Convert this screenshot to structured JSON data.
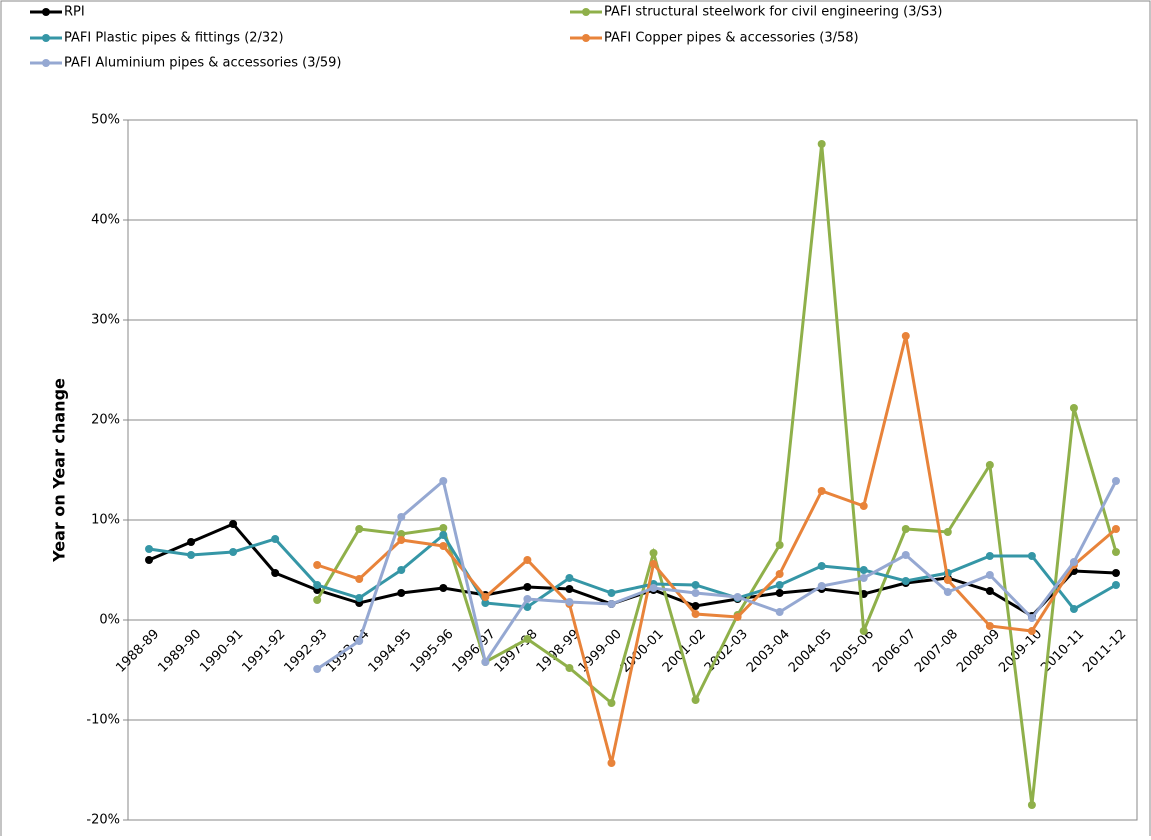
{
  "chart_data": {
    "type": "line",
    "y_label": "Year on Year change",
    "categories": [
      "1988-89",
      "1989-90",
      "1990-91",
      "1991-92",
      "1992-93",
      "1993-94",
      "1994-95",
      "1995-96",
      "1996-97",
      "1997-98",
      "1998-99",
      "1999-00",
      "2000-01",
      "2001-02",
      "2002-03",
      "2003-04",
      "2004-05",
      "2005-06",
      "2006-07",
      "2007-08",
      "2008-09",
      "2009-10",
      "2010-11",
      "2011-12"
    ],
    "series": [
      {
        "name": "RPI",
        "color": "#000000",
        "values": [
          6.0,
          7.8,
          9.6,
          4.7,
          3.0,
          1.7,
          2.7,
          3.2,
          2.5,
          3.3,
          3.1,
          1.6,
          3.0,
          1.4,
          2.1,
          2.7,
          3.1,
          2.6,
          3.7,
          4.2,
          2.9,
          0.4,
          4.9,
          4.7
        ]
      },
      {
        "name": "PAFI structural steelwork for civil engineering (3/S3)",
        "color": "#8fb04a",
        "values": [
          null,
          null,
          null,
          null,
          2.0,
          9.1,
          8.6,
          9.2,
          -4.2,
          -1.9,
          -4.8,
          -8.3,
          6.7,
          -8.0,
          0.5,
          7.5,
          47.6,
          -1.1,
          9.1,
          8.8,
          15.5,
          -18.5,
          21.2,
          6.8
        ]
      },
      {
        "name": "PAFI Plastic pipes & fittings (2/32)",
        "color": "#3596a6",
        "values": [
          7.1,
          6.5,
          6.8,
          8.1,
          3.5,
          2.2,
          5.0,
          8.5,
          1.7,
          1.3,
          4.2,
          2.7,
          3.6,
          3.5,
          2.2,
          3.5,
          5.4,
          5.0,
          3.9,
          4.7,
          6.4,
          6.4,
          1.1,
          3.5
        ]
      },
      {
        "name": "PAFI Copper pipes & accessories (3/58)",
        "color": "#e8833a",
        "values": [
          null,
          null,
          null,
          null,
          5.5,
          4.1,
          8.0,
          7.4,
          2.3,
          6.0,
          1.6,
          -14.3,
          5.6,
          0.6,
          0.3,
          4.6,
          12.9,
          11.4,
          28.4,
          4.0,
          -0.6,
          -1.1,
          5.5,
          9.1
        ]
      },
      {
        "name": "PAFI Aluminium pipes & accessories (3/59)",
        "color": "#95a8d2",
        "values": [
          null,
          null,
          null,
          null,
          -4.9,
          -2.1,
          10.3,
          13.9,
          -4.2,
          2.1,
          1.8,
          1.6,
          3.2,
          2.7,
          2.3,
          0.8,
          3.4,
          4.2,
          6.5,
          2.8,
          4.5,
          0.2,
          5.8,
          13.9
        ]
      }
    ],
    "ylim": [
      -20,
      50
    ],
    "yticks": [
      {
        "value": -20,
        "label": "-20%"
      },
      {
        "value": -10,
        "label": "-10%"
      },
      {
        "value": 0,
        "label": "0%"
      },
      {
        "value": 10,
        "label": "10%"
      },
      {
        "value": 20,
        "label": "20%"
      },
      {
        "value": 30,
        "label": "30%"
      },
      {
        "value": 40,
        "label": "40%"
      },
      {
        "value": 50,
        "label": "50%"
      }
    ],
    "grid": true
  }
}
